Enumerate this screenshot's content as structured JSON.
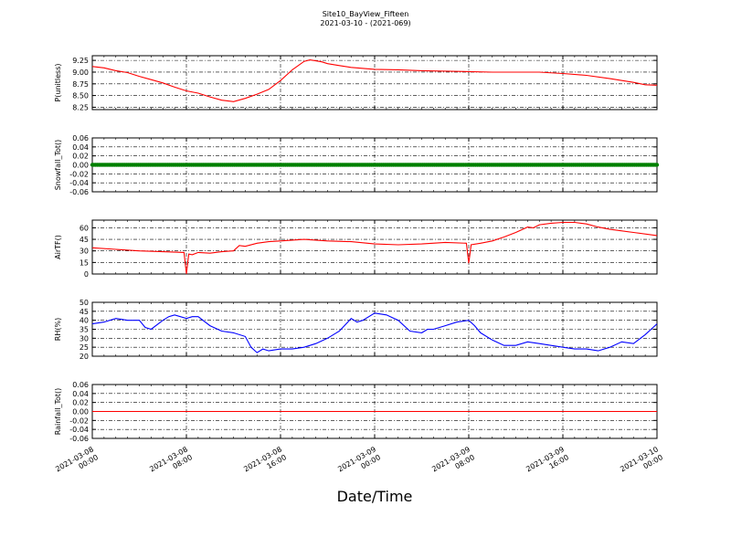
{
  "header": {
    "title": "Site10_BayView_Fifteen",
    "subtitle": "2021-03-10 - (2021-069)"
  },
  "x_axis_title": "Date/Time",
  "chart_data": [
    {
      "type": "line",
      "name": "pressure",
      "ylabel": "P(unitless)",
      "ylim": [
        8.2,
        9.35
      ],
      "yticks": [
        "9.25",
        "9.00",
        "8.75",
        "8.50",
        "8.25"
      ],
      "ytick_values": [
        9.25,
        9.0,
        8.75,
        8.5,
        8.25
      ],
      "color": "#ff0000",
      "grid": true,
      "x": [
        0,
        1,
        2,
        3,
        4,
        5,
        6,
        7,
        8,
        9,
        10,
        11,
        12,
        13,
        14,
        15,
        16,
        17,
        18,
        18.5,
        19,
        19.5,
        20,
        21,
        22,
        24,
        26,
        28,
        30,
        32,
        34,
        36,
        38,
        40,
        42,
        44,
        46,
        47,
        48,
        48
      ],
      "values": [
        9.12,
        9.09,
        9.03,
        8.99,
        8.91,
        8.84,
        8.77,
        8.68,
        8.6,
        8.55,
        8.47,
        8.4,
        8.37,
        8.44,
        8.53,
        8.63,
        8.82,
        9.05,
        9.23,
        9.26,
        9.24,
        9.22,
        9.18,
        9.14,
        9.1,
        9.06,
        9.05,
        9.03,
        9.02,
        9.01,
        9.0,
        9.0,
        9.0,
        8.97,
        8.93,
        8.86,
        8.78,
        8.73,
        8.72,
        8.72
      ],
      "x_unit": "hours since first tick label"
    },
    {
      "type": "scatter",
      "name": "snowfall",
      "ylabel": "Snowfall_Tot()",
      "ylim": [
        -0.06,
        0.06
      ],
      "yticks": [
        "0.06",
        "0.04",
        "0.02",
        "0.00",
        "-0.02",
        "-0.04",
        "-0.06"
      ],
      "ytick_values": [
        0.06,
        0.04,
        0.02,
        0.0,
        -0.02,
        -0.04,
        -0.06
      ],
      "color": "#008000",
      "grid": true,
      "x": [
        0,
        48
      ],
      "values": [
        0,
        0
      ]
    },
    {
      "type": "line",
      "name": "air_temp",
      "ylabel": "AirTF()",
      "ylim": [
        0,
        70
      ],
      "yticks": [
        "60",
        "45",
        "30",
        "15",
        "0"
      ],
      "ytick_values": [
        60,
        45,
        30,
        15,
        0
      ],
      "color": "#ff0000",
      "grid": true,
      "x": [
        0,
        2,
        4,
        6,
        7.8,
        8.0,
        8.2,
        8.5,
        9,
        10,
        11,
        12,
        12.5,
        13,
        14,
        15,
        16,
        17,
        18,
        19,
        20,
        22,
        24,
        26,
        28,
        30,
        31.8,
        32.0,
        32.2,
        33,
        34,
        35,
        36,
        37,
        37.5,
        38,
        39,
        40,
        41,
        42,
        43,
        44,
        46,
        48
      ],
      "values": [
        34,
        32,
        30,
        29,
        28,
        0,
        26,
        25,
        28,
        27,
        29,
        30,
        37,
        36,
        40,
        42,
        43,
        44,
        45,
        44,
        43,
        42,
        39,
        38,
        39,
        41,
        40,
        14,
        38,
        40,
        43,
        48,
        54,
        61,
        60,
        64,
        66,
        67,
        67,
        65,
        61,
        58,
        54,
        50
      ]
    },
    {
      "type": "line",
      "name": "rh",
      "ylabel": "RH(%)",
      "ylim": [
        20,
        50
      ],
      "yticks": [
        "50",
        "45",
        "40",
        "35",
        "30",
        "25",
        "20"
      ],
      "ytick_values": [
        50,
        45,
        40,
        35,
        30,
        25,
        20
      ],
      "color": "#0000ff",
      "grid": true,
      "x": [
        0,
        1,
        2,
        3,
        4,
        4.5,
        5,
        6,
        6.5,
        7,
        8,
        8.5,
        9,
        10,
        11,
        12,
        13,
        13.5,
        14,
        14.5,
        15,
        16,
        17,
        18,
        19,
        20,
        21,
        22,
        22.5,
        23,
        24,
        25,
        26,
        27,
        28,
        28.5,
        29,
        30,
        31,
        32,
        32.5,
        33,
        34,
        35,
        35.5,
        36,
        37,
        38,
        39,
        40,
        41,
        42,
        43,
        44,
        45,
        46,
        47,
        48
      ],
      "values": [
        38,
        39,
        41,
        40,
        40,
        36,
        35,
        40,
        42,
        43,
        41,
        42,
        42,
        37,
        34,
        33,
        31,
        25,
        22,
        24,
        23,
        24,
        24,
        25,
        27,
        30,
        34,
        41,
        39,
        40,
        44,
        43,
        40,
        34,
        33,
        35,
        35,
        37,
        39,
        40,
        37,
        33,
        29,
        26,
        26,
        26,
        28,
        27,
        26,
        25,
        24,
        24,
        23,
        25,
        28,
        27,
        32,
        38
      ]
    },
    {
      "type": "line",
      "name": "rainfall",
      "ylabel": "Rainfall_Tot()",
      "ylim": [
        -0.06,
        0.06
      ],
      "yticks": [
        "0.06",
        "0.04",
        "0.02",
        "0.00",
        "-0.02",
        "-0.04",
        "-0.06"
      ],
      "ytick_values": [
        0.06,
        0.04,
        0.02,
        0.0,
        -0.02,
        -0.04,
        -0.06
      ],
      "color": "#ff0000",
      "grid": true,
      "x": [
        0,
        48
      ],
      "values": [
        0,
        0
      ]
    }
  ],
  "x_ticks": [
    {
      "value": 0,
      "line1": "2021-03-08",
      "line2": "00:00"
    },
    {
      "value": 8,
      "line1": "2021-03-08",
      "line2": "08:00"
    },
    {
      "value": 16,
      "line1": "2021-03-08",
      "line2": "16:00"
    },
    {
      "value": 24,
      "line1": "2021-03-09",
      "line2": "00:00"
    },
    {
      "value": 32,
      "line1": "2021-03-09",
      "line2": "08:00"
    },
    {
      "value": 40,
      "line1": "2021-03-09",
      "line2": "16:00"
    },
    {
      "value": 48,
      "line1": "2021-03-10",
      "line2": "00:00"
    }
  ],
  "x_range": [
    0,
    48
  ]
}
